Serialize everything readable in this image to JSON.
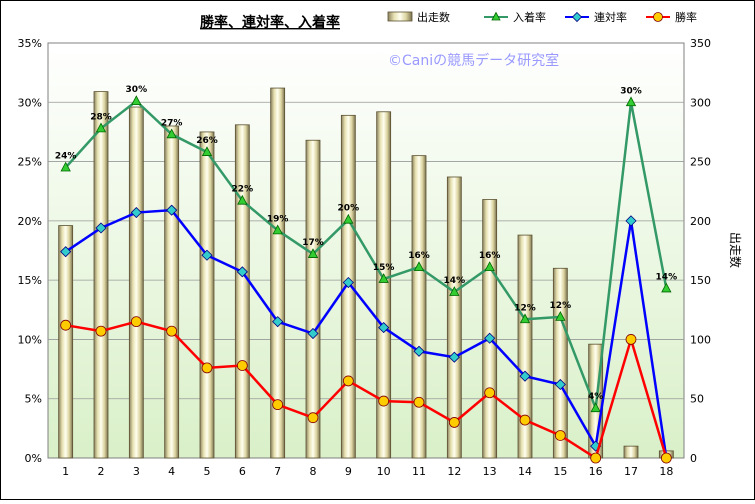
{
  "chart_data": {
    "type": "bar",
    "title": "勝率、連対率、入着率",
    "watermark": "©Caniの競馬データ研究室",
    "xlabel": "",
    "ylabel_left": "",
    "ylabel_right": "出走数",
    "categories": [
      "1",
      "2",
      "3",
      "4",
      "5",
      "6",
      "7",
      "8",
      "9",
      "10",
      "11",
      "12",
      "13",
      "14",
      "15",
      "16",
      "17",
      "18"
    ],
    "ylim_left": [
      0,
      35
    ],
    "ylim_right": [
      0,
      350
    ],
    "left_ticks": [
      "0%",
      "5%",
      "10%",
      "15%",
      "20%",
      "25%",
      "30%",
      "35%"
    ],
    "right_ticks": [
      "0",
      "50",
      "100",
      "150",
      "200",
      "250",
      "300",
      "350"
    ],
    "grid": true,
    "legend_position": "top",
    "series": [
      {
        "name": "出走数",
        "type": "bar",
        "axis": "right",
        "color": "#d8d0a0",
        "values": [
          196,
          309,
          296,
          280,
          275,
          281,
          312,
          268,
          289,
          292,
          255,
          237,
          218,
          188,
          160,
          96,
          10,
          6
        ]
      },
      {
        "name": "入着率",
        "type": "line",
        "axis": "left",
        "color": "#339966",
        "marker": "triangle",
        "marker_color": "#33cc33",
        "values": [
          24.5,
          27.8,
          30.1,
          27.3,
          25.8,
          21.7,
          19.2,
          17.2,
          20.1,
          15.1,
          16.1,
          14.0,
          16.1,
          11.7,
          11.9,
          4.2,
          30.0,
          14.3
        ]
      },
      {
        "name": "連対率",
        "type": "line",
        "axis": "left",
        "color": "#0000ff",
        "marker": "diamond",
        "marker_color": "#33cccc",
        "values": [
          17.4,
          19.4,
          20.7,
          20.9,
          17.1,
          15.7,
          11.5,
          10.5,
          14.8,
          11.0,
          9.0,
          8.5,
          10.1,
          6.9,
          6.2,
          1.0,
          20.0,
          0.0
        ]
      },
      {
        "name": "勝率",
        "type": "line",
        "axis": "left",
        "color": "#ff0000",
        "marker": "circle",
        "marker_color": "#ffcc00",
        "values": [
          11.2,
          10.7,
          11.5,
          10.7,
          7.6,
          7.8,
          4.5,
          3.4,
          6.5,
          4.8,
          4.7,
          3.0,
          5.5,
          3.2,
          1.9,
          0.0,
          10.0,
          0.0
        ]
      }
    ],
    "data_labels_series": "入着率",
    "data_labels": [
      "24%",
      "28%",
      "30%",
      "27%",
      "26%",
      "22%",
      "19%",
      "17%",
      "20%",
      "15%",
      "16%",
      "14%",
      "16%",
      "12%",
      "12%",
      "4%",
      "30%",
      "14%"
    ]
  },
  "colors": {
    "plot_bg_top": "#ffffff",
    "plot_bg_bottom": "#d9f0c8",
    "title_color": "#000000",
    "watermark_color": "#9999ff"
  }
}
